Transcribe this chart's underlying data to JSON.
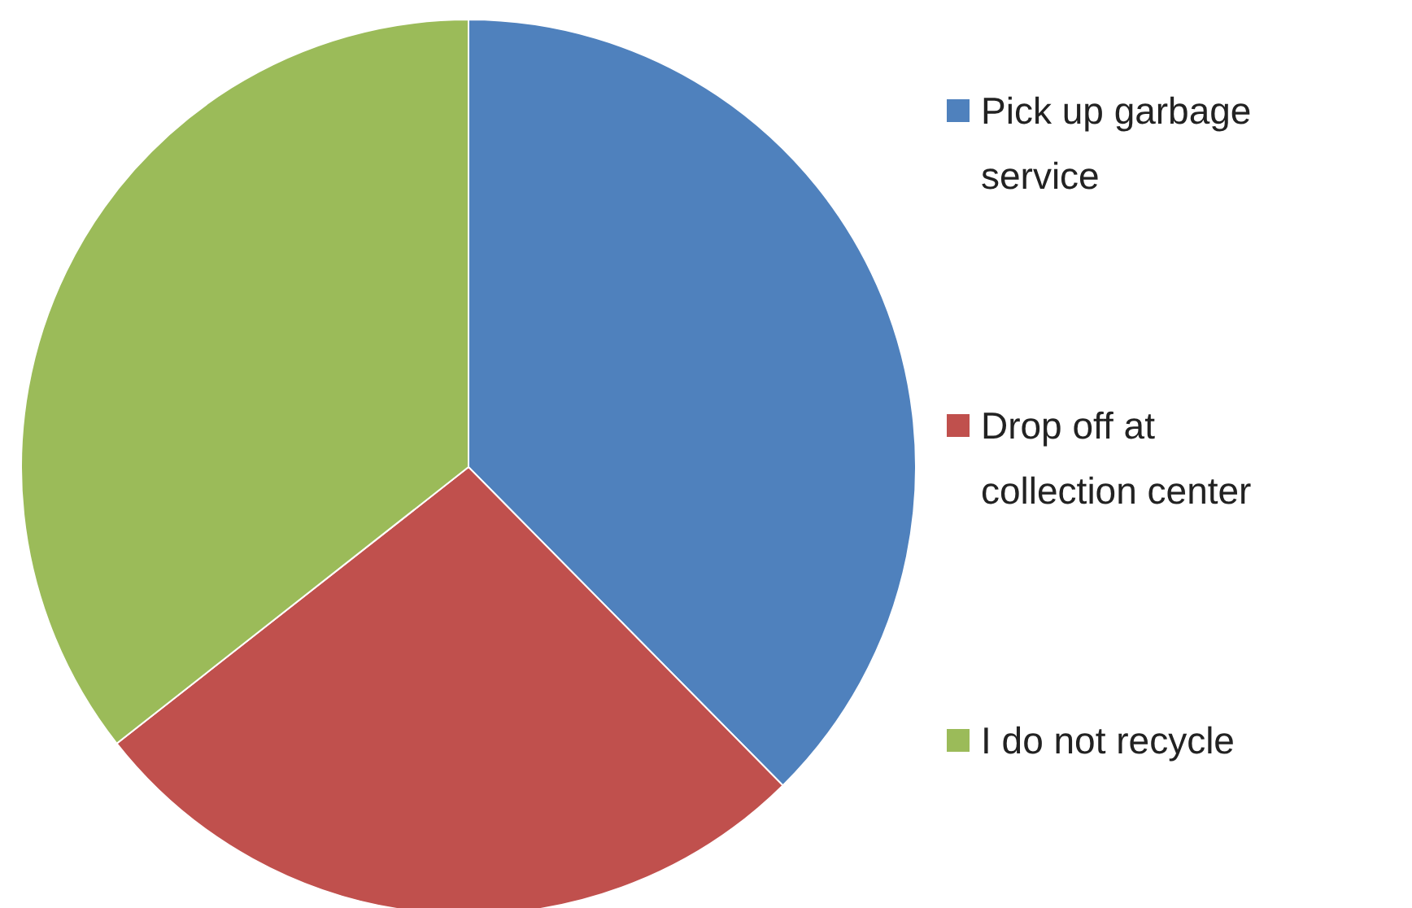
{
  "chart_data": {
    "type": "pie",
    "categories": [
      "Pick up garbage service",
      "Drop off at collection center",
      "I do not recycle"
    ],
    "values": [
      37.6,
      26.8,
      35.6
    ],
    "colors": [
      "#4f81bd",
      "#c0504d",
      "#9bbb59"
    ],
    "legend": "right"
  }
}
